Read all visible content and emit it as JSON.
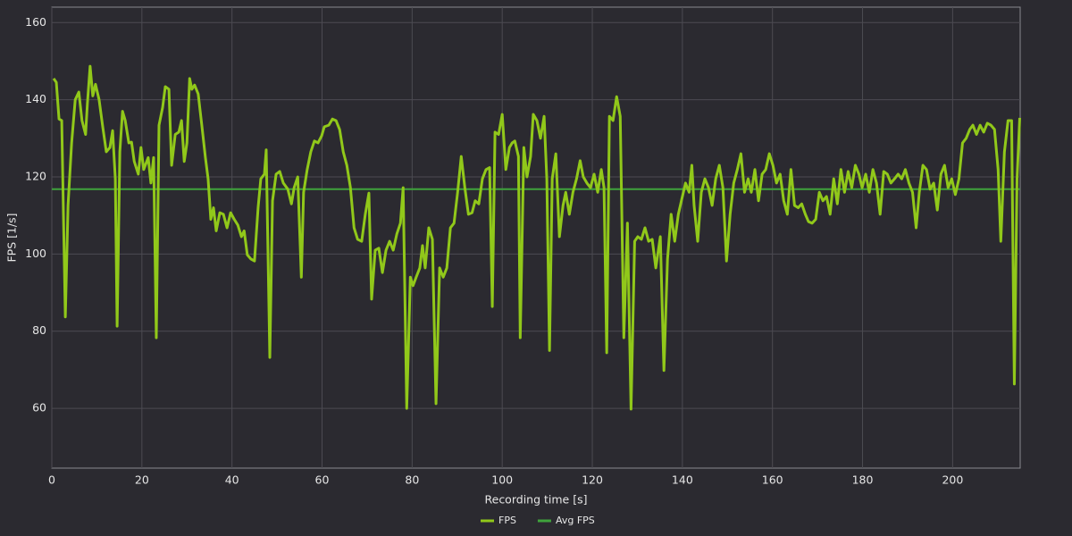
{
  "chart_data": {
    "type": "line",
    "x_label": "Recording time [s]",
    "y_label": "FPS [1/s]",
    "xlim": [
      0,
      215
    ],
    "ylim": [
      44.5,
      164
    ],
    "xticks": [
      0,
      20,
      40,
      60,
      80,
      100,
      120,
      140,
      160,
      180,
      200
    ],
    "yticks": [
      60,
      80,
      100,
      120,
      140,
      160
    ],
    "grid": true,
    "legend": "bottom",
    "series": [
      {
        "name": "FPS",
        "color": "#91c81a",
        "x": [
          0.4,
          1.0,
          1.6,
          2.2,
          3.0,
          3.6,
          4.4,
          5.2,
          6.0,
          6.7,
          7.5,
          7.9,
          8.5,
          9.1,
          9.7,
          10.5,
          11.3,
          12.1,
          12.9,
          13.5,
          14.1,
          14.5,
          15.1,
          15.7,
          16.3,
          17.1,
          17.7,
          18.3,
          19.2,
          19.8,
          20.4,
          21.4,
          22.0,
          22.6,
          23.2,
          23.8,
          24.6,
          25.2,
          26.0,
          26.6,
          27.4,
          28.2,
          28.8,
          29.4,
          30.0,
          30.6,
          31.1,
          31.7,
          32.5,
          33.3,
          34.1,
          34.7,
          35.3,
          35.9,
          36.5,
          37.3,
          38.1,
          38.9,
          39.7,
          40.5,
          41.3,
          42.1,
          42.7,
          43.4,
          44.2,
          45.0,
          45.8,
          46.4,
          47.2,
          47.6,
          48.4,
          49.0,
          49.8,
          50.6,
          51.4,
          52.4,
          53.2,
          53.8,
          54.6,
          55.4,
          55.9,
          56.7,
          57.5,
          58.3,
          59.1,
          59.9,
          60.5,
          61.5,
          62.3,
          63.1,
          63.9,
          64.7,
          65.5,
          66.3,
          67.1,
          67.9,
          68.8,
          69.6,
          70.4,
          71.0,
          71.8,
          72.6,
          73.4,
          74.2,
          75.0,
          75.8,
          76.6,
          77.4,
          78.0,
          78.8,
          79.6,
          80.2,
          80.9,
          81.7,
          82.3,
          82.9,
          83.7,
          84.5,
          85.3,
          86.1,
          86.9,
          87.7,
          88.5,
          89.3,
          90.1,
          90.9,
          91.7,
          92.5,
          93.3,
          94.0,
          94.8,
          95.6,
          96.4,
          97.2,
          97.8,
          98.4,
          99.2,
          100.0,
          100.8,
          101.6,
          102.2,
          102.8,
          103.6,
          104.0,
          104.8,
          105.5,
          106.3,
          106.9,
          107.7,
          108.5,
          109.3,
          109.9,
          110.5,
          111.1,
          111.9,
          112.7,
          113.5,
          114.1,
          114.9,
          115.7,
          116.5,
          117.3,
          118.0,
          118.8,
          119.6,
          120.4,
          121.2,
          122.0,
          122.6,
          123.2,
          123.8,
          124.6,
          125.4,
          126.2,
          127.0,
          127.8,
          128.6,
          129.4,
          130.1,
          130.9,
          131.7,
          132.5,
          133.3,
          134.1,
          135.1,
          135.9,
          136.7,
          137.5,
          138.3,
          139.1,
          139.9,
          140.7,
          141.5,
          142.1,
          142.6,
          143.4,
          144.2,
          145.0,
          145.8,
          146.6,
          147.4,
          148.2,
          149.0,
          149.8,
          150.6,
          151.4,
          152.2,
          153.0,
          153.8,
          154.6,
          155.3,
          156.1,
          156.9,
          157.7,
          158.5,
          159.3,
          160.1,
          160.9,
          161.7,
          162.5,
          163.3,
          164.1,
          164.9,
          165.7,
          166.5,
          167.3,
          168.0,
          168.8,
          169.6,
          170.4,
          171.2,
          172.0,
          172.8,
          173.6,
          174.4,
          175.2,
          176.0,
          176.8,
          177.6,
          178.4,
          179.2,
          179.9,
          180.7,
          181.5,
          182.3,
          183.1,
          183.9,
          184.7,
          185.5,
          186.3,
          187.1,
          187.9,
          188.7,
          189.5,
          190.3,
          191.1,
          191.9,
          192.6,
          193.4,
          194.2,
          195.0,
          195.8,
          196.6,
          197.4,
          198.2,
          199.0,
          199.8,
          200.6,
          201.4,
          202.2,
          203.0,
          203.8,
          204.5,
          205.3,
          206.1,
          206.9,
          207.7,
          208.5,
          209.3,
          210.1,
          210.7,
          211.5,
          212.3,
          213.1,
          213.7,
          214.3,
          214.9
        ],
        "values": [
          145.5,
          144.5,
          135,
          134.6,
          83.7,
          112.6,
          128.8,
          140,
          142,
          134.6,
          131,
          139,
          148.7,
          141,
          144,
          140,
          133,
          126.5,
          127.6,
          132,
          119.5,
          81.3,
          126.5,
          137,
          134.6,
          128.8,
          129,
          124,
          120.7,
          127.6,
          121.9,
          125,
          118.4,
          125,
          78.3,
          133.4,
          138,
          143.4,
          142.7,
          123,
          131,
          131.6,
          134.6,
          124,
          128.8,
          145.5,
          142.7,
          143.8,
          141.5,
          133.4,
          125,
          119.5,
          109,
          112,
          106,
          110.7,
          110.3,
          106.8,
          110.7,
          109,
          107.5,
          104.5,
          106,
          99.8,
          98.7,
          98.2,
          112,
          119.5,
          120.7,
          127,
          73.2,
          113.8,
          120.7,
          121.4,
          118.4,
          116.8,
          113,
          117.2,
          120,
          94,
          116,
          121.9,
          126.5,
          129.3,
          128.8,
          130.6,
          133,
          133.4,
          135,
          134.6,
          132.3,
          126.5,
          123,
          117.2,
          106.8,
          103.8,
          103.3,
          110.3,
          115.8,
          88.3,
          101,
          101.5,
          95.2,
          101,
          103.3,
          101,
          105.2,
          108,
          117.2,
          60,
          94,
          91.8,
          94,
          96.4,
          102.2,
          96.4,
          106.8,
          103.8,
          61.2,
          96.4,
          94,
          96.4,
          106.8,
          108,
          116,
          125.3,
          117.2,
          110.3,
          110.7,
          113.8,
          113,
          119.5,
          121.9,
          122.4,
          86.4,
          131.6,
          131,
          136.2,
          121.9,
          127.6,
          128.8,
          129.3,
          125.3,
          78.3,
          127.6,
          120,
          125.3,
          136.2,
          134.6,
          130,
          135.7,
          119.5,
          75,
          119.5,
          126,
          104.5,
          112.6,
          116,
          110.3,
          116,
          119.5,
          124.2,
          120,
          118.4,
          117.2,
          120.7,
          116,
          121.9,
          117.2,
          74.4,
          135.7,
          134.6,
          140.8,
          135.7,
          78.3,
          108,
          59.8,
          103.3,
          104.5,
          103.8,
          106.8,
          103.3,
          103.8,
          96.4,
          104.5,
          69.8,
          98.7,
          110.3,
          103.3,
          110.3,
          114.4,
          118.4,
          116,
          123,
          112.6,
          103.3,
          116,
          119.5,
          117.2,
          112.6,
          119.5,
          123,
          117.2,
          98.2,
          110.3,
          118.4,
          121.9,
          126,
          116,
          119.5,
          116,
          121.9,
          113.8,
          120.7,
          121.9,
          126,
          123,
          118.4,
          120.7,
          113.8,
          110.3,
          121.9,
          112.6,
          112,
          113,
          110.3,
          108.4,
          108,
          109,
          116,
          113.8,
          114.9,
          110.3,
          119.5,
          113,
          121.9,
          116,
          121.4,
          117.2,
          123,
          120.7,
          117.2,
          120.7,
          116,
          121.9,
          118.4,
          110.3,
          121.4,
          120.7,
          118.4,
          119.5,
          120.7,
          119.5,
          121.9,
          118.4,
          116,
          106.8,
          116,
          123,
          121.9,
          116.8,
          118.4,
          111.4,
          120.7,
          123,
          117.2,
          119.5,
          115.4,
          119.5,
          128.8,
          130,
          132.3,
          133.4,
          131,
          133.4,
          131.6,
          133.9,
          133.4,
          132.3,
          121.9,
          103.3,
          126.5,
          134.6,
          134.6,
          66.3,
          119.5,
          135.3
        ]
      },
      {
        "name": "Avg FPS",
        "color": "#3fa33c",
        "x": [
          0,
          215
        ],
        "values": [
          116.8,
          116.8
        ]
      }
    ]
  }
}
